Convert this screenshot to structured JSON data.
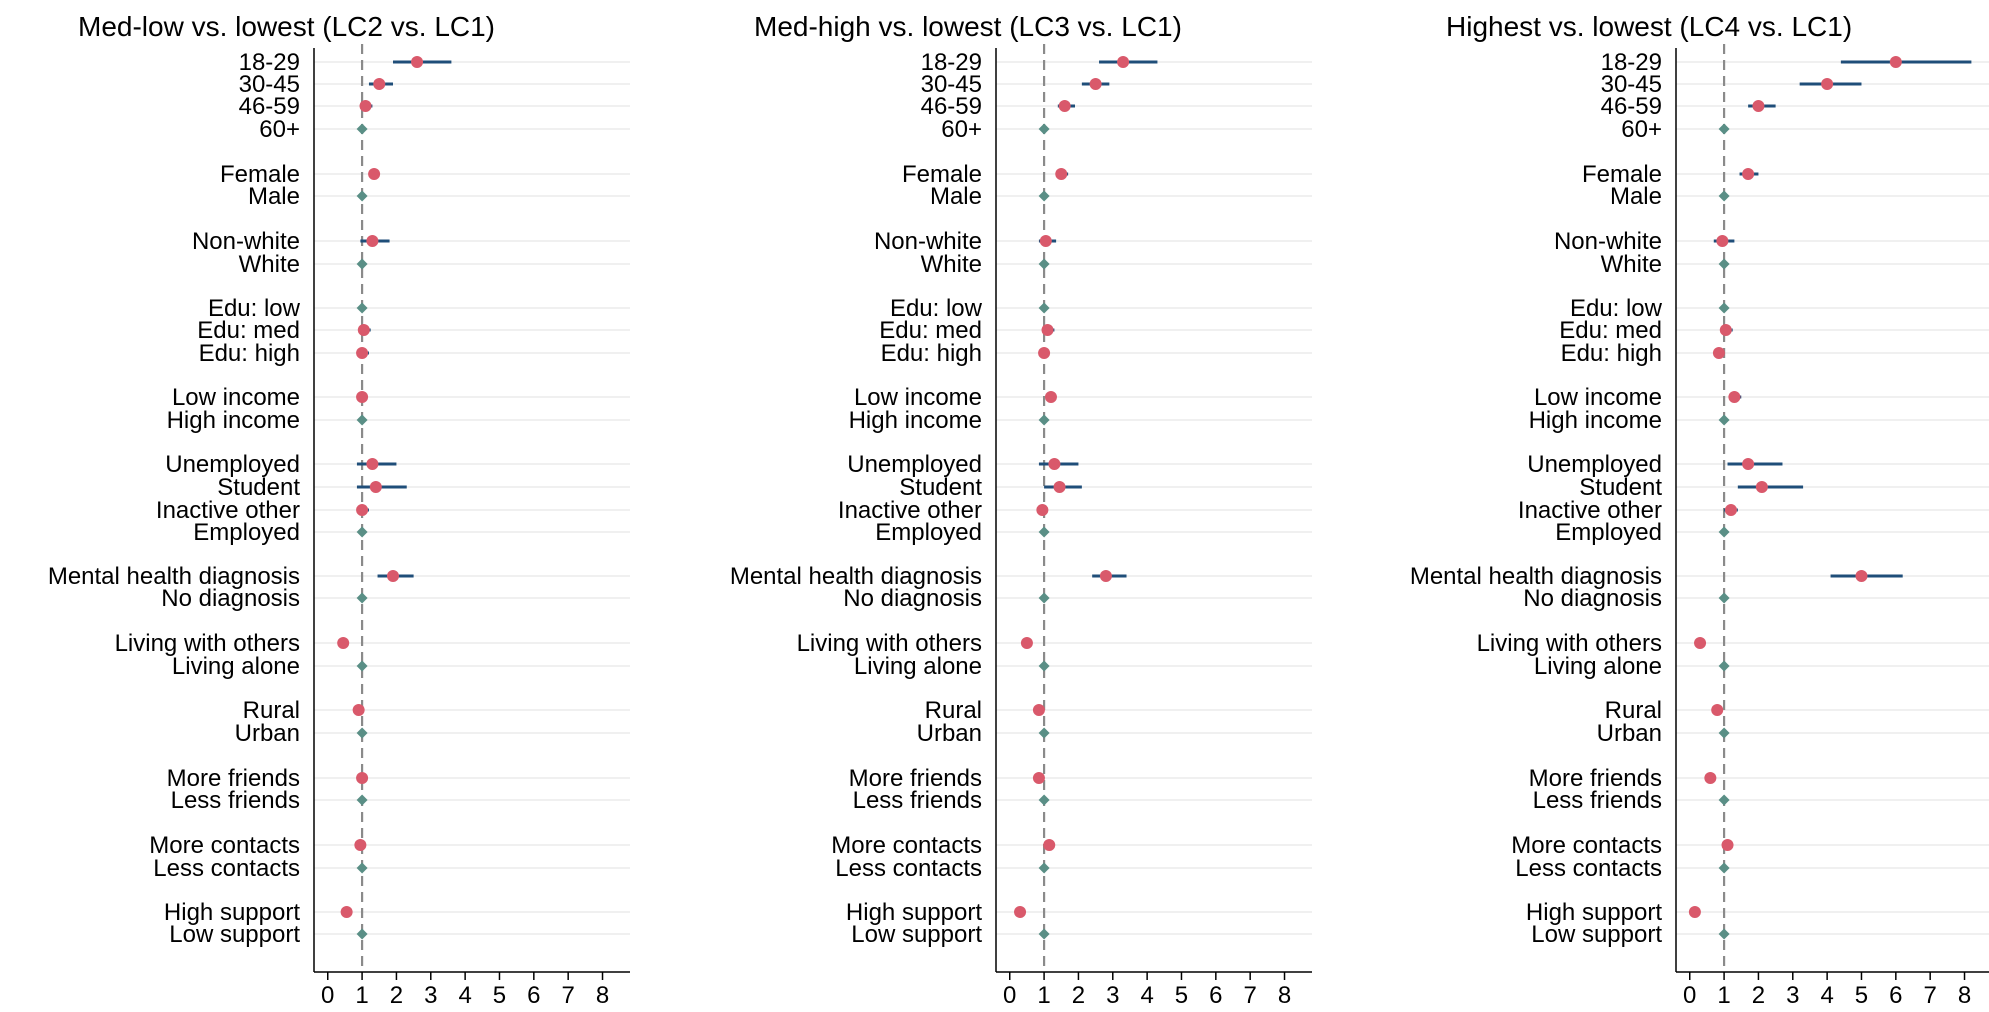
{
  "chart_data": [
    {
      "type": "scatter",
      "title": "Med-low vs. lowest (LC2 vs. LC1)",
      "xlabel": "",
      "ylabel": "",
      "xlim": [
        -0.4,
        8.8
      ],
      "xticks": [
        0,
        1,
        2,
        3,
        4,
        5,
        6,
        7,
        8
      ],
      "reference_line": 1,
      "grid": "horizontal",
      "rows": [
        {
          "label": "18-29",
          "est": 2.6,
          "lo": 1.9,
          "hi": 3.6,
          "ref": false
        },
        {
          "label": "30-45",
          "est": 1.5,
          "lo": 1.2,
          "hi": 1.9,
          "ref": false
        },
        {
          "label": "46-59",
          "est": 1.1,
          "lo": 0.95,
          "hi": 1.3,
          "ref": false
        },
        {
          "label": "60+",
          "est": 1,
          "ref": true
        },
        {
          "label": "Female",
          "est": 1.35,
          "lo": 1.2,
          "hi": 1.5,
          "ref": false
        },
        {
          "label": "Male",
          "est": 1,
          "ref": true
        },
        {
          "label": "Non-white",
          "est": 1.3,
          "lo": 0.95,
          "hi": 1.8,
          "ref": false
        },
        {
          "label": "White",
          "est": 1,
          "ref": true
        },
        {
          "label": "Edu: low",
          "est": 1,
          "ref": true
        },
        {
          "label": "Edu: med",
          "est": 1.05,
          "lo": 0.9,
          "hi": 1.25,
          "ref": false
        },
        {
          "label": "Edu: high",
          "est": 1.0,
          "lo": 0.85,
          "hi": 1.2,
          "ref": false
        },
        {
          "label": "Low income",
          "est": 1.0,
          "lo": 0.9,
          "hi": 1.15,
          "ref": false
        },
        {
          "label": "High income",
          "est": 1,
          "ref": true
        },
        {
          "label": "Unemployed",
          "est": 1.3,
          "lo": 0.85,
          "hi": 2.0,
          "ref": false
        },
        {
          "label": "Student",
          "est": 1.4,
          "lo": 0.85,
          "hi": 2.3,
          "ref": false
        },
        {
          "label": "Inactive other",
          "est": 1.0,
          "lo": 0.85,
          "hi": 1.2,
          "ref": false
        },
        {
          "label": "Employed",
          "est": 1,
          "ref": true
        },
        {
          "label": "Mental health diagnosis",
          "est": 1.9,
          "lo": 1.45,
          "hi": 2.5,
          "ref": false
        },
        {
          "label": "No diagnosis",
          "est": 1,
          "ref": true
        },
        {
          "label": "Living with others",
          "est": 0.45,
          "lo": 0.4,
          "hi": 0.55,
          "ref": false
        },
        {
          "label": "Living alone",
          "est": 1,
          "ref": true
        },
        {
          "label": "Rural",
          "est": 0.9,
          "lo": 0.8,
          "hi": 1.0,
          "ref": false
        },
        {
          "label": "Urban",
          "est": 1,
          "ref": true
        },
        {
          "label": "More friends",
          "est": 1.0,
          "lo": 0.9,
          "hi": 1.1,
          "ref": false
        },
        {
          "label": "Less friends",
          "est": 1,
          "ref": true
        },
        {
          "label": "More contacts",
          "est": 0.95,
          "lo": 0.85,
          "hi": 1.05,
          "ref": false
        },
        {
          "label": "Less contacts",
          "est": 1,
          "ref": true
        },
        {
          "label": "High support",
          "est": 0.55,
          "lo": 0.45,
          "hi": 0.65,
          "ref": false
        },
        {
          "label": "Low support",
          "est": 1,
          "ref": true
        }
      ]
    },
    {
      "type": "scatter",
      "title": "Med-high vs. lowest (LC3 vs. LC1)",
      "xlabel": "",
      "ylabel": "",
      "xlim": [
        -0.4,
        8.8
      ],
      "xticks": [
        0,
        1,
        2,
        3,
        4,
        5,
        6,
        7,
        8
      ],
      "reference_line": 1,
      "grid": "horizontal",
      "rows": [
        {
          "label": "18-29",
          "est": 3.3,
          "lo": 2.6,
          "hi": 4.3,
          "ref": false
        },
        {
          "label": "30-45",
          "est": 2.5,
          "lo": 2.1,
          "hi": 2.9,
          "ref": false
        },
        {
          "label": "46-59",
          "est": 1.6,
          "lo": 1.4,
          "hi": 1.9,
          "ref": false
        },
        {
          "label": "60+",
          "est": 1,
          "ref": true
        },
        {
          "label": "Female",
          "est": 1.5,
          "lo": 1.35,
          "hi": 1.7,
          "ref": false
        },
        {
          "label": "Male",
          "est": 1,
          "ref": true
        },
        {
          "label": "Non-white",
          "est": 1.05,
          "lo": 0.85,
          "hi": 1.35,
          "ref": false
        },
        {
          "label": "White",
          "est": 1,
          "ref": true
        },
        {
          "label": "Edu: low",
          "est": 1,
          "ref": true
        },
        {
          "label": "Edu: med",
          "est": 1.1,
          "lo": 0.95,
          "hi": 1.3,
          "ref": false
        },
        {
          "label": "Edu: high",
          "est": 1.0,
          "lo": 0.9,
          "hi": 1.15,
          "ref": false
        },
        {
          "label": "Low income",
          "est": 1.2,
          "lo": 1.1,
          "hi": 1.35,
          "ref": false
        },
        {
          "label": "High income",
          "est": 1,
          "ref": true
        },
        {
          "label": "Unemployed",
          "est": 1.3,
          "lo": 0.85,
          "hi": 2.0,
          "ref": false
        },
        {
          "label": "Student",
          "est": 1.45,
          "lo": 1.0,
          "hi": 2.1,
          "ref": false
        },
        {
          "label": "Inactive other",
          "est": 0.95,
          "lo": 0.85,
          "hi": 1.1,
          "ref": false
        },
        {
          "label": "Employed",
          "est": 1,
          "ref": true
        },
        {
          "label": "Mental health diagnosis",
          "est": 2.8,
          "lo": 2.4,
          "hi": 3.4,
          "ref": false
        },
        {
          "label": "No diagnosis",
          "est": 1,
          "ref": true
        },
        {
          "label": "Living with others",
          "est": 0.5,
          "lo": 0.42,
          "hi": 0.6,
          "ref": false
        },
        {
          "label": "Living alone",
          "est": 1,
          "ref": true
        },
        {
          "label": "Rural",
          "est": 0.85,
          "lo": 0.75,
          "hi": 0.95,
          "ref": false
        },
        {
          "label": "Urban",
          "est": 1,
          "ref": true
        },
        {
          "label": "More friends",
          "est": 0.85,
          "lo": 0.75,
          "hi": 0.95,
          "ref": false
        },
        {
          "label": "Less friends",
          "est": 1,
          "ref": true
        },
        {
          "label": "More contacts",
          "est": 1.15,
          "lo": 1.0,
          "hi": 1.3,
          "ref": false
        },
        {
          "label": "Less contacts",
          "est": 1,
          "ref": true
        },
        {
          "label": "High support",
          "est": 0.3,
          "lo": 0.25,
          "hi": 0.35,
          "ref": false
        },
        {
          "label": "Low support",
          "est": 1,
          "ref": true
        }
      ]
    },
    {
      "type": "scatter",
      "title": "Highest vs. lowest (LC4 vs. LC1)",
      "xlabel": "",
      "ylabel": "",
      "xlim": [
        -0.4,
        8.8
      ],
      "xticks": [
        0,
        1,
        2,
        3,
        4,
        5,
        6,
        7,
        8
      ],
      "reference_line": 1,
      "grid": "horizontal",
      "rows": [
        {
          "label": "18-29",
          "est": 6.0,
          "lo": 4.4,
          "hi": 8.2,
          "ref": false
        },
        {
          "label": "30-45",
          "est": 4.0,
          "lo": 3.2,
          "hi": 5.0,
          "ref": false
        },
        {
          "label": "46-59",
          "est": 2.0,
          "lo": 1.7,
          "hi": 2.5,
          "ref": false
        },
        {
          "label": "60+",
          "est": 1,
          "ref": true
        },
        {
          "label": "Female",
          "est": 1.7,
          "lo": 1.45,
          "hi": 2.0,
          "ref": false
        },
        {
          "label": "Male",
          "est": 1,
          "ref": true
        },
        {
          "label": "Non-white",
          "est": 0.95,
          "lo": 0.7,
          "hi": 1.3,
          "ref": false
        },
        {
          "label": "White",
          "est": 1,
          "ref": true
        },
        {
          "label": "Edu: low",
          "est": 1,
          "ref": true
        },
        {
          "label": "Edu: med",
          "est": 1.05,
          "lo": 0.9,
          "hi": 1.25,
          "ref": false
        },
        {
          "label": "Edu: high",
          "est": 0.85,
          "lo": 0.75,
          "hi": 1.0,
          "ref": false
        },
        {
          "label": "Low income",
          "est": 1.3,
          "lo": 1.15,
          "hi": 1.5,
          "ref": false
        },
        {
          "label": "High income",
          "est": 1,
          "ref": true
        },
        {
          "label": "Unemployed",
          "est": 1.7,
          "lo": 1.1,
          "hi": 2.7,
          "ref": false
        },
        {
          "label": "Student",
          "est": 2.1,
          "lo": 1.4,
          "hi": 3.3,
          "ref": false
        },
        {
          "label": "Inactive other",
          "est": 1.2,
          "lo": 1.0,
          "hi": 1.4,
          "ref": false
        },
        {
          "label": "Employed",
          "est": 1,
          "ref": true
        },
        {
          "label": "Mental health diagnosis",
          "est": 5.0,
          "lo": 4.1,
          "hi": 6.2,
          "ref": false
        },
        {
          "label": "No diagnosis",
          "est": 1,
          "ref": true
        },
        {
          "label": "Living with others",
          "est": 0.3,
          "lo": 0.25,
          "hi": 0.35,
          "ref": false
        },
        {
          "label": "Living alone",
          "est": 1,
          "ref": true
        },
        {
          "label": "Rural",
          "est": 0.8,
          "lo": 0.7,
          "hi": 0.9,
          "ref": false
        },
        {
          "label": "Urban",
          "est": 1,
          "ref": true
        },
        {
          "label": "More friends",
          "est": 0.6,
          "lo": 0.5,
          "hi": 0.7,
          "ref": false
        },
        {
          "label": "Less friends",
          "est": 1,
          "ref": true
        },
        {
          "label": "More contacts",
          "est": 1.1,
          "lo": 0.95,
          "hi": 1.25,
          "ref": false
        },
        {
          "label": "Less contacts",
          "est": 1,
          "ref": true
        },
        {
          "label": "High support",
          "est": 0.15,
          "lo": 0.1,
          "hi": 0.2,
          "ref": false
        },
        {
          "label": "Low support",
          "est": 1,
          "ref": true
        }
      ]
    }
  ],
  "colors": {
    "estimate_marker": "#d9596b",
    "reference_marker": "#5a8f86",
    "ci_line": "#1f4e79",
    "reference_line": "#8a8a8a",
    "gridline": "#e6e6e6",
    "axis": "#000000"
  }
}
